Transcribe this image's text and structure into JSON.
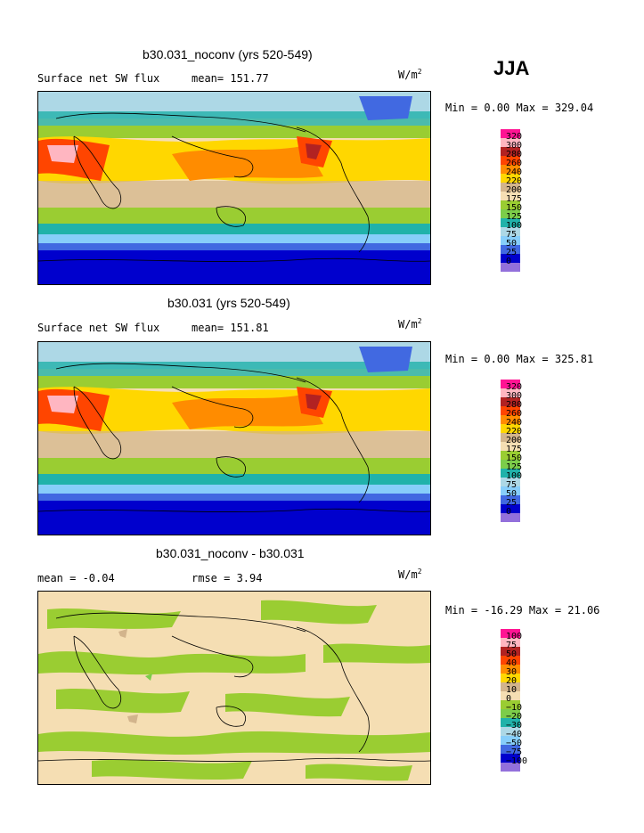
{
  "season": "JJA",
  "panels": [
    {
      "id": "noconv",
      "title": "b30.031_noconv (yrs 520-549)",
      "left_label": "Surface net SW flux",
      "mean_label": "mean= 151.77",
      "units_base": "W/m",
      "units_exp": "2",
      "minmax": "Min =   0.00 Max = 329.04",
      "legend_levels": [
        "320",
        "300",
        "280",
        "260",
        "240",
        "220",
        "200",
        "175",
        "150",
        "125",
        "100",
        "75",
        "50",
        "25",
        "0"
      ],
      "legend_colors": [
        "#ff1493",
        "#ffb6c1",
        "#b22222",
        "#ff4500",
        "#ff8c00",
        "#ffd700",
        "#d2b48c",
        "#f5deb3",
        "#9acd32",
        "#7ccd4a",
        "#20b2aa",
        "#add8e6",
        "#87cefa",
        "#4169e1",
        "#0000cd",
        "#9370db"
      ]
    },
    {
      "id": "control",
      "title": "b30.031 (yrs 520-549)",
      "left_label": "Surface net SW flux",
      "mean_label": "mean= 151.81",
      "units_base": "W/m",
      "units_exp": "2",
      "minmax": "Min =   0.00 Max = 325.81",
      "legend_levels": [
        "320",
        "300",
        "280",
        "260",
        "240",
        "220",
        "200",
        "175",
        "150",
        "125",
        "100",
        "75",
        "50",
        "25",
        "0"
      ],
      "legend_colors": [
        "#ff1493",
        "#ffb6c1",
        "#b22222",
        "#ff4500",
        "#ff8c00",
        "#ffd700",
        "#d2b48c",
        "#f5deb3",
        "#9acd32",
        "#7ccd4a",
        "#20b2aa",
        "#add8e6",
        "#87cefa",
        "#4169e1",
        "#0000cd",
        "#9370db"
      ]
    },
    {
      "id": "diff",
      "title": "b30.031_noconv - b30.031",
      "left_label": "mean =   -0.04",
      "mean_label": "rmse =    3.94",
      "units_base": "W/m",
      "units_exp": "2",
      "minmax": "Min = -16.29 Max =  21.06",
      "legend_levels": [
        "100",
        "75",
        "50",
        "40",
        "30",
        "20",
        "10",
        "0",
        "−10",
        "−20",
        "−30",
        "−40",
        "−50",
        "−75",
        "−100"
      ],
      "legend_colors": [
        "#ff1493",
        "#ffb6c1",
        "#b22222",
        "#ff4500",
        "#ff8c00",
        "#ffd700",
        "#d2b48c",
        "#f5deb3",
        "#9acd32",
        "#7ccd4a",
        "#20b2aa",
        "#add8e6",
        "#87cefa",
        "#4169e1",
        "#0000cd",
        "#9370db"
      ]
    }
  ]
}
